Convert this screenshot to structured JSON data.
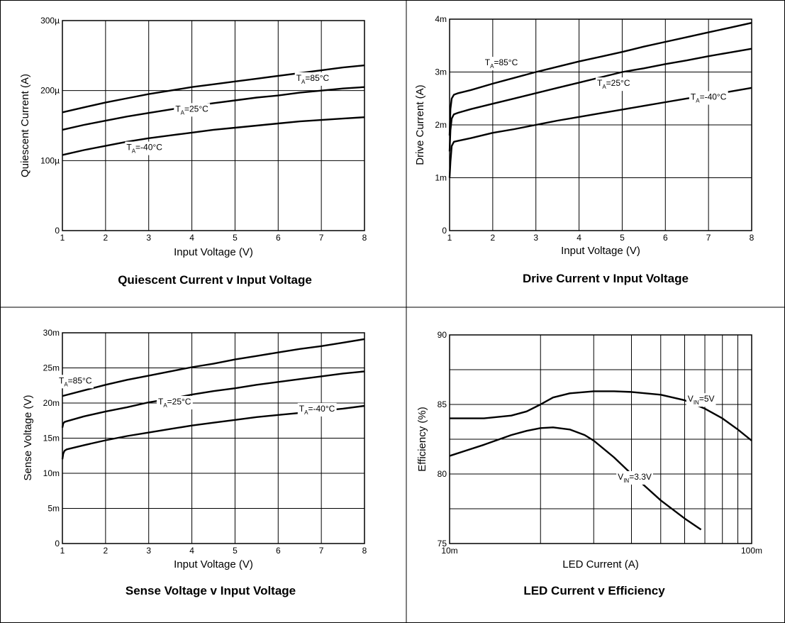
{
  "colors": {
    "line": "#000000",
    "grid": "#000000",
    "background": "#ffffff",
    "label_bg": "#ffffff"
  },
  "chart_data": [
    {
      "type": "line",
      "title": "Quiescent Current v Input Voltage",
      "xlabel": "Input Voltage (V)",
      "ylabel": "Quiescent Current (A)",
      "xlim": [
        1,
        8
      ],
      "ylim": [
        0,
        0.0003
      ],
      "x_ticks": [
        1,
        2,
        3,
        4,
        5,
        6,
        7,
        8
      ],
      "x_tick_labels": [
        "1",
        "2",
        "3",
        "4",
        "5",
        "6",
        "7",
        "8"
      ],
      "y_ticks": [
        0,
        0.0001,
        0.0002,
        0.0003
      ],
      "y_tick_labels": [
        "0",
        "100µ",
        "200µ",
        "300µ"
      ],
      "grid": true,
      "series": [
        {
          "name": "TA=85°C",
          "label_main": "T",
          "label_sub": "A",
          "label_rest": "=85°C",
          "label_at": [
            6.8,
            0.000218
          ],
          "x": [
            1,
            1.5,
            2,
            2.5,
            3,
            3.5,
            4,
            4.5,
            5,
            5.5,
            6,
            6.5,
            7,
            7.5,
            8
          ],
          "y": [
            0.000169,
            0.000176,
            0.000183,
            0.000189,
            0.000195,
            0.0002,
            0.000205,
            0.000209,
            0.000213,
            0.000217,
            0.000221,
            0.000225,
            0.000229,
            0.000233,
            0.000236
          ]
        },
        {
          "name": "TA=25°C",
          "label_main": "T",
          "label_sub": "A",
          "label_rest": "=25°C",
          "label_at": [
            4.0,
            0.000174
          ],
          "x": [
            1,
            1.5,
            2,
            2.5,
            3,
            3.5,
            4,
            4.5,
            5,
            5.5,
            6,
            6.5,
            7,
            7.5,
            8
          ],
          "y": [
            0.000144,
            0.000151,
            0.000157,
            0.000163,
            0.000168,
            0.000173,
            0.000178,
            0.000182,
            0.000186,
            0.00019,
            0.000193,
            0.000197,
            0.0002,
            0.000203,
            0.000205
          ]
        },
        {
          "name": "TA=-40°C",
          "label_main": "T",
          "label_sub": "A",
          "label_rest": "=-40°C",
          "label_at": [
            2.9,
            0.000119
          ],
          "x": [
            1,
            1.5,
            2,
            2.5,
            3,
            3.5,
            4,
            4.5,
            5,
            5.5,
            6,
            6.5,
            7,
            7.5,
            8
          ],
          "y": [
            0.000108,
            0.000115,
            0.000121,
            0.000127,
            0.000132,
            0.000136,
            0.00014,
            0.000144,
            0.000147,
            0.00015,
            0.000153,
            0.000156,
            0.000158,
            0.00016,
            0.000162
          ]
        }
      ]
    },
    {
      "type": "line",
      "title": "Drive Current v Input Voltage",
      "xlabel": "Input Voltage (V)",
      "ylabel": "Drive Current (A)",
      "xlim": [
        1,
        8
      ],
      "ylim": [
        0,
        0.004
      ],
      "x_ticks": [
        1,
        2,
        3,
        4,
        5,
        6,
        7,
        8
      ],
      "x_tick_labels": [
        "1",
        "2",
        "3",
        "4",
        "5",
        "6",
        "7",
        "8"
      ],
      "y_ticks": [
        0,
        0.001,
        0.002,
        0.003,
        0.004
      ],
      "y_tick_labels": [
        "0",
        "1m",
        "2m",
        "3m",
        "4m"
      ],
      "grid": true,
      "series": [
        {
          "name": "TA=85°C",
          "label_main": "T",
          "label_sub": "A",
          "label_rest": "=85°C",
          "label_at": [
            2.2,
            0.00318
          ],
          "x": [
            1,
            1.02,
            1.05,
            1.1,
            1.2,
            1.5,
            2,
            2.5,
            3,
            3.5,
            4,
            4.5,
            5,
            5.5,
            6,
            6.5,
            7,
            7.5,
            8
          ],
          "y": [
            0.0018,
            0.0023,
            0.0025,
            0.00257,
            0.0026,
            0.00266,
            0.00278,
            0.00289,
            0.003,
            0.0031,
            0.0032,
            0.00329,
            0.00338,
            0.00348,
            0.00357,
            0.00366,
            0.00375,
            0.00384,
            0.00393
          ]
        },
        {
          "name": "TA=25°C",
          "label_main": "T",
          "label_sub": "A",
          "label_rest": "=25°C",
          "label_at": [
            4.8,
            0.00279
          ],
          "x": [
            1,
            1.02,
            1.05,
            1.1,
            1.2,
            1.5,
            2,
            2.5,
            3,
            3.5,
            4,
            4.5,
            5,
            5.5,
            6,
            6.5,
            7,
            7.5,
            8
          ],
          "y": [
            0.0015,
            0.0019,
            0.00212,
            0.0022,
            0.00223,
            0.0023,
            0.0024,
            0.0025,
            0.0026,
            0.0027,
            0.0028,
            0.0029,
            0.003,
            0.00307,
            0.00315,
            0.00322,
            0.0033,
            0.00337,
            0.00344
          ]
        },
        {
          "name": "TA=-40°C",
          "label_main": "T",
          "label_sub": "A",
          "label_rest": "=-40°C",
          "label_at": [
            7.0,
            0.00253
          ],
          "x": [
            1,
            1.02,
            1.05,
            1.1,
            1.2,
            1.5,
            2,
            2.5,
            3,
            3.5,
            4,
            4.5,
            5,
            5.5,
            6,
            6.5,
            7,
            7.5,
            8
          ],
          "y": [
            0.001,
            0.0013,
            0.0016,
            0.00168,
            0.0017,
            0.00175,
            0.00185,
            0.00192,
            0.002,
            0.00208,
            0.00215,
            0.00222,
            0.00229,
            0.00236,
            0.00243,
            0.0025,
            0.00256,
            0.00263,
            0.0027
          ]
        }
      ]
    },
    {
      "type": "line",
      "title": "Sense Voltage v Input Voltage",
      "xlabel": "Input Voltage (V)",
      "ylabel": "Sense Voltage (V)",
      "xlim": [
        1,
        8
      ],
      "ylim": [
        0,
        0.03
      ],
      "x_ticks": [
        1,
        2,
        3,
        4,
        5,
        6,
        7,
        8
      ],
      "x_tick_labels": [
        "1",
        "2",
        "3",
        "4",
        "5",
        "6",
        "7",
        "8"
      ],
      "y_ticks": [
        0,
        0.005,
        0.01,
        0.015,
        0.02,
        0.025,
        0.03
      ],
      "y_tick_labels": [
        "0",
        "5m",
        "10m",
        "15m",
        "20m",
        "25m",
        "30m"
      ],
      "grid": true,
      "series": [
        {
          "name": "TA=85°C",
          "label_main": "T",
          "label_sub": "A",
          "label_rest": "=85°C",
          "label_at": [
            1.3,
            0.0232
          ],
          "x": [
            1,
            1.5,
            2,
            2.5,
            3,
            3.5,
            4,
            4.5,
            5,
            5.5,
            6,
            6.5,
            7,
            7.5,
            8
          ],
          "y": [
            0.021,
            0.0218,
            0.0226,
            0.0233,
            0.0239,
            0.0245,
            0.0251,
            0.0256,
            0.0262,
            0.0267,
            0.0272,
            0.0277,
            0.0281,
            0.0286,
            0.0291
          ]
        },
        {
          "name": "TA=25°C",
          "label_main": "T",
          "label_sub": "A",
          "label_rest": "=25°C",
          "label_at": [
            3.6,
            0.0202
          ],
          "x": [
            1,
            1.02,
            1.05,
            1.1,
            1.5,
            2,
            2.5,
            3,
            3.5,
            4,
            4.5,
            5,
            5.5,
            6,
            6.5,
            7,
            7.5,
            8
          ],
          "y": [
            0.0165,
            0.0171,
            0.0173,
            0.0174,
            0.0181,
            0.0188,
            0.0194,
            0.0201,
            0.0206,
            0.0212,
            0.0217,
            0.0221,
            0.0226,
            0.023,
            0.0234,
            0.0238,
            0.0242,
            0.0245
          ]
        },
        {
          "name": "TA=-40°C",
          "label_main": "T",
          "label_sub": "A",
          "label_rest": "=-40°C",
          "label_at": [
            6.9,
            0.0192
          ],
          "x": [
            1,
            1.02,
            1.05,
            1.1,
            1.5,
            2,
            2.5,
            3,
            3.5,
            4,
            4.5,
            5,
            5.5,
            6,
            6.5,
            7,
            7.5,
            8
          ],
          "y": [
            0.012,
            0.0128,
            0.0132,
            0.0134,
            0.014,
            0.0147,
            0.0153,
            0.0158,
            0.0163,
            0.0168,
            0.0172,
            0.0176,
            0.018,
            0.0183,
            0.0186,
            0.0189,
            0.0192,
            0.0196
          ]
        }
      ]
    },
    {
      "type": "line",
      "title": "LED Current v Efficiency",
      "xlabel": "LED Current (A)",
      "ylabel": "Efficiency (%)",
      "xscale": "log",
      "xlim": [
        0.01,
        0.1
      ],
      "ylim": [
        75,
        90
      ],
      "x_ticks": [
        0.01,
        0.02,
        0.03,
        0.04,
        0.05,
        0.06,
        0.07,
        0.08,
        0.09,
        0.1
      ],
      "x_tick_labels": [
        "10m",
        "",
        "",
        "",
        "",
        "",
        "",
        "",
        "",
        "100m"
      ],
      "y_ticks": [
        75,
        77.5,
        80,
        82.5,
        85,
        87.5,
        90
      ],
      "y_tick_labels": [
        "75",
        "",
        "80",
        "",
        "85",
        "",
        "90"
      ],
      "grid": true,
      "series": [
        {
          "name": "VIN=5V",
          "label_main": "V",
          "label_sub": "IN",
          "label_rest": "=5V",
          "label_at": [
            0.068,
            85.4
          ],
          "x": [
            0.01,
            0.013,
            0.016,
            0.018,
            0.02,
            0.022,
            0.025,
            0.03,
            0.035,
            0.04,
            0.05,
            0.06,
            0.07,
            0.08,
            0.09,
            0.1
          ],
          "y": [
            84.0,
            84.0,
            84.2,
            84.5,
            85.0,
            85.5,
            85.8,
            85.95,
            85.95,
            85.9,
            85.7,
            85.3,
            84.7,
            84.0,
            83.2,
            82.4
          ]
        },
        {
          "name": "VIN=3.3V",
          "label_main": "V",
          "label_sub": "IN",
          "label_rest": "=3.3V",
          "label_at": [
            0.041,
            79.8
          ],
          "x": [
            0.01,
            0.013,
            0.016,
            0.018,
            0.02,
            0.022,
            0.025,
            0.028,
            0.03,
            0.035,
            0.04,
            0.045,
            0.05,
            0.06,
            0.068
          ],
          "y": [
            81.3,
            82.1,
            82.8,
            83.1,
            83.3,
            83.35,
            83.2,
            82.8,
            82.4,
            81.2,
            80.0,
            79.0,
            78.1,
            76.8,
            76.0
          ]
        }
      ]
    }
  ]
}
